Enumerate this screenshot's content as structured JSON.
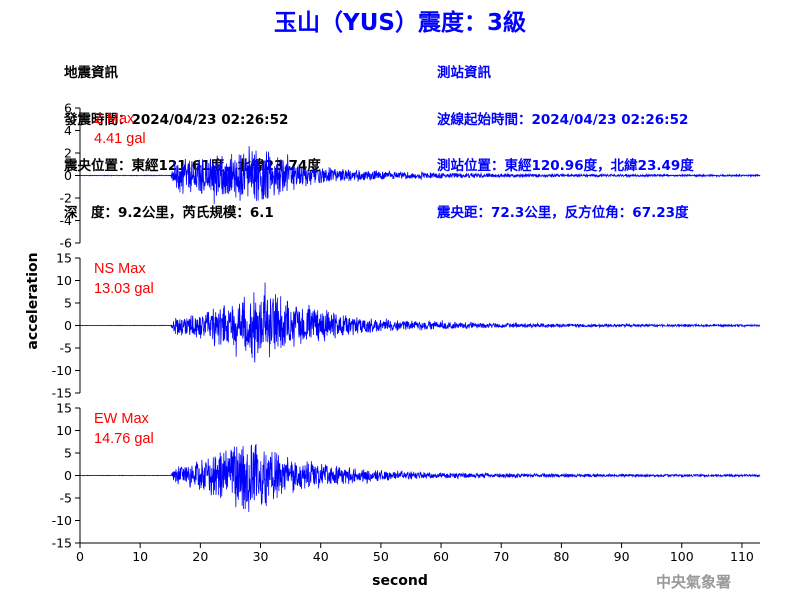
{
  "title": "玉山（YUS）震度：3級",
  "event_info": {
    "heading": "地震資訊",
    "origin_time": "發震時間：2024/04/23 02:26:52",
    "epicenter": "震央位置：東經121.61度，北緯23.74度",
    "depth_magnitude": "深　度：9.2公里，芮氏規模：6.1"
  },
  "station_info": {
    "heading": "測站資訊",
    "wave_start": "波線起始時間：2024/04/23 02:26:52",
    "station_location": "測站位置：東經120.96度，北緯23.49度",
    "distance_azimuth": "震央距：72.3公里，反方位角：67.23度"
  },
  "agency": "中央氣象署",
  "chart_data": {
    "type": "line",
    "xlabel": "second",
    "ylabel": "acceleration",
    "xlim": [
      0,
      113
    ],
    "xticks": [
      0,
      10,
      20,
      30,
      40,
      50,
      60,
      70,
      80,
      90,
      100,
      110
    ],
    "line_color": "#0000ff",
    "label_color": "#ff0000",
    "series": [
      {
        "name": "Z Max",
        "max_label": "4.41 gal",
        "peak": 4.41,
        "ylim": [
          -6,
          6
        ],
        "yticks": [
          6,
          4,
          2,
          0,
          -2,
          -4,
          -6
        ],
        "envelope_x": [
          0,
          15,
          16,
          20,
          25,
          28,
          30,
          32,
          35,
          38,
          42,
          46,
          50,
          55,
          60,
          70,
          80,
          90,
          100,
          113
        ],
        "envelope_y": [
          0.03,
          0.03,
          1.6,
          1.8,
          2.4,
          2.8,
          3.0,
          2.3,
          1.5,
          1.0,
          0.7,
          0.55,
          0.45,
          0.35,
          0.28,
          0.2,
          0.15,
          0.12,
          0.1,
          0.08
        ]
      },
      {
        "name": "NS Max",
        "max_label": "13.03 gal",
        "peak": 13.03,
        "ylim": [
          -15,
          15
        ],
        "yticks": [
          15,
          10,
          5,
          0,
          -5,
          -10,
          -15
        ],
        "envelope_x": [
          0,
          15,
          16,
          20,
          22,
          25,
          28,
          31,
          34,
          37,
          40,
          45,
          50,
          55,
          60,
          70,
          80,
          90,
          100,
          113
        ],
        "envelope_y": [
          0.05,
          0.05,
          2.5,
          3.0,
          4.5,
          6.0,
          8.0,
          9.0,
          6.5,
          5.0,
          4.0,
          2.5,
          1.6,
          1.2,
          0.9,
          0.6,
          0.45,
          0.35,
          0.3,
          0.25
        ]
      },
      {
        "name": "EW Max",
        "max_label": "14.76 gal",
        "peak": 14.76,
        "ylim": [
          -15,
          15
        ],
        "yticks": [
          15,
          10,
          5,
          0,
          -5,
          -10,
          -15
        ],
        "envelope_x": [
          0,
          15,
          16,
          20,
          22,
          25,
          27,
          30,
          33,
          36,
          40,
          45,
          50,
          55,
          60,
          70,
          80,
          90,
          100,
          113
        ],
        "envelope_y": [
          0.05,
          0.05,
          2.5,
          3.5,
          5.0,
          7.0,
          9.0,
          8.0,
          6.0,
          4.0,
          3.0,
          2.0,
          1.5,
          1.0,
          0.8,
          0.55,
          0.45,
          0.35,
          0.3,
          0.25
        ]
      }
    ]
  }
}
